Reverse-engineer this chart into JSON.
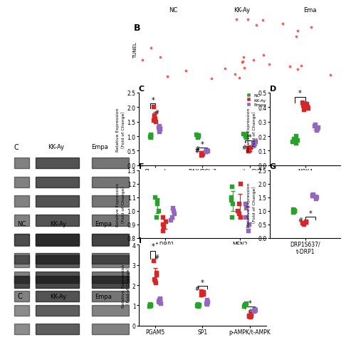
{
  "colors": {
    "NC": "#2ca02c",
    "KK": "#d62728",
    "Empa": "#9467bd"
  },
  "marker": "s",
  "markersize": 4,
  "panels": {
    "C": {
      "ylabel": "Relative Expression\n（Fold of Change）",
      "ylim": [
        0.0,
        2.5
      ],
      "yticks": [
        0.0,
        0.5,
        1.0,
        1.5,
        2.0,
        2.5
      ],
      "groups": [
        "Cleaved\nCaspase 3",
        "BAX/BCL-2",
        "mito-CYT"
      ],
      "NC": {
        "Cleaved\nCaspase 3": [
          1.0,
          0.95,
          1.05,
          1.02,
          0.98
        ],
        "BAX/BCL-2": [
          1.0,
          1.05,
          0.95,
          1.02,
          0.98
        ],
        "mito-CYT": [
          1.0,
          1.05,
          0.95,
          1.02,
          1.08
        ]
      },
      "KK": {
        "Cleaved\nCaspase 3": [
          1.6,
          1.5,
          1.55,
          1.65,
          1.7,
          2.0
        ],
        "BAX/BCL-2": [
          0.35,
          0.4,
          0.42,
          0.38,
          0.36
        ],
        "mito-CYT": [
          0.55,
          0.5,
          0.6,
          0.58,
          0.52,
          0.48
        ]
      },
      "Empa": {
        "Cleaved\nCaspase 3": [
          1.2,
          1.3,
          1.25,
          1.15,
          1.35,
          1.28
        ],
        "BAX/BCL-2": [
          0.45,
          0.48,
          0.5,
          0.52,
          0.47
        ],
        "mito-CYT": [
          0.75,
          0.72,
          0.78,
          0.8,
          0.7,
          0.68
        ]
      }
    },
    "D": {
      "ylabel": "Relative Expression\n（Fold of Change）",
      "ylim": [
        0.0,
        0.5
      ],
      "yticks": [
        0.0,
        0.1,
        0.2,
        0.3,
        0.4,
        0.5
      ],
      "groups": [
        "NOX4"
      ],
      "NC": {
        "NOX4": [
          0.15,
          0.18,
          0.2,
          0.16,
          0.17
        ]
      },
      "KK": {
        "NOX4": [
          0.38,
          0.4,
          0.42,
          0.39,
          0.41,
          0.43
        ]
      },
      "Empa": {
        "NOX4": [
          0.25,
          0.27,
          0.28,
          0.26,
          0.24
        ]
      }
    },
    "F": {
      "ylabel": "Relative Expression\n（Fold of Change）",
      "ylim": [
        0.8,
        1.3
      ],
      "yticks": [
        0.8,
        0.9,
        1.0,
        1.1,
        1.2,
        1.3
      ],
      "groups": [
        "t-DRP1",
        "MFN2"
      ],
      "NC": {
        "t-DRP1": [
          1.05,
          1.1,
          1.0,
          0.95,
          1.08
        ],
        "MFN2": [
          1.05,
          1.1,
          1.08,
          0.95,
          1.18
        ]
      },
      "KK": {
        "t-DRP1": [
          0.88,
          0.9,
          0.92,
          0.95,
          0.85
        ],
        "MFN2": [
          0.95,
          1.0,
          1.05,
          1.2,
          0.98
        ]
      },
      "Empa": {
        "t-DRP1": [
          0.95,
          0.98,
          1.0,
          1.02,
          0.93
        ],
        "MFN2": [
          0.9,
          0.95,
          1.02,
          0.85,
          1.05
        ]
      }
    },
    "G": {
      "ylabel": "Relative Expression\n（Fold of Change）",
      "ylim": [
        0.0,
        2.5
      ],
      "yticks": [
        0.0,
        0.5,
        1.0,
        1.5,
        2.0,
        2.5
      ],
      "groups": [
        "DRP1S637/\nt-DRP1"
      ],
      "NC": {
        "DRP1S637/\nt-DRP1": [
          1.0,
          0.95,
          1.05,
          1.02,
          0.98
        ]
      },
      "KK": {
        "DRP1S637/\nt-DRP1": [
          0.6,
          0.55,
          0.5,
          0.58,
          0.52
        ]
      },
      "Empa": {
        "DRP1S637/\nt-DRP1": [
          1.5,
          1.55,
          1.6,
          1.45,
          1.58
        ]
      }
    },
    "I": {
      "ylabel": "Relative Expression\n（Fold of Change）",
      "ylim": [
        0.0,
        4.0
      ],
      "yticks": [
        0,
        1,
        2,
        3,
        4
      ],
      "groups": [
        "PGAM5",
        "SP1",
        "p-AMPK/t-AMPK"
      ],
      "NC": {
        "PGAM5": [
          1.0,
          0.95,
          1.05,
          1.02,
          0.98,
          1.01
        ],
        "SP1": [
          1.0,
          0.95,
          1.05,
          1.02,
          0.98
        ],
        "p-AMPK/t-AMPK": [
          1.0,
          1.05,
          0.95,
          1.02,
          1.08
        ]
      },
      "KK": {
        "PGAM5": [
          2.1,
          2.3,
          2.5,
          2.2,
          2.6,
          3.2
        ],
        "SP1": [
          1.5,
          1.6,
          1.65,
          1.7,
          1.55
        ],
        "p-AMPK/t-AMPK": [
          0.45,
          0.5,
          0.55,
          0.48,
          0.42
        ]
      },
      "Empa": {
        "PGAM5": [
          1.2,
          1.3,
          1.1,
          1.25,
          1.35,
          1.15
        ],
        "SP1": [
          1.1,
          1.15,
          1.2,
          1.05,
          1.25
        ],
        "p-AMPK/t-AMPK": [
          0.75,
          0.8,
          0.72,
          0.78,
          0.7
        ]
      }
    }
  },
  "gel_bg": "#c8c8c8",
  "gel_band_colors": [
    "#303030",
    "#505050",
    "#404040"
  ],
  "tunel_bg": "#1a0000",
  "tunel_dot_color": "#ff4444"
}
